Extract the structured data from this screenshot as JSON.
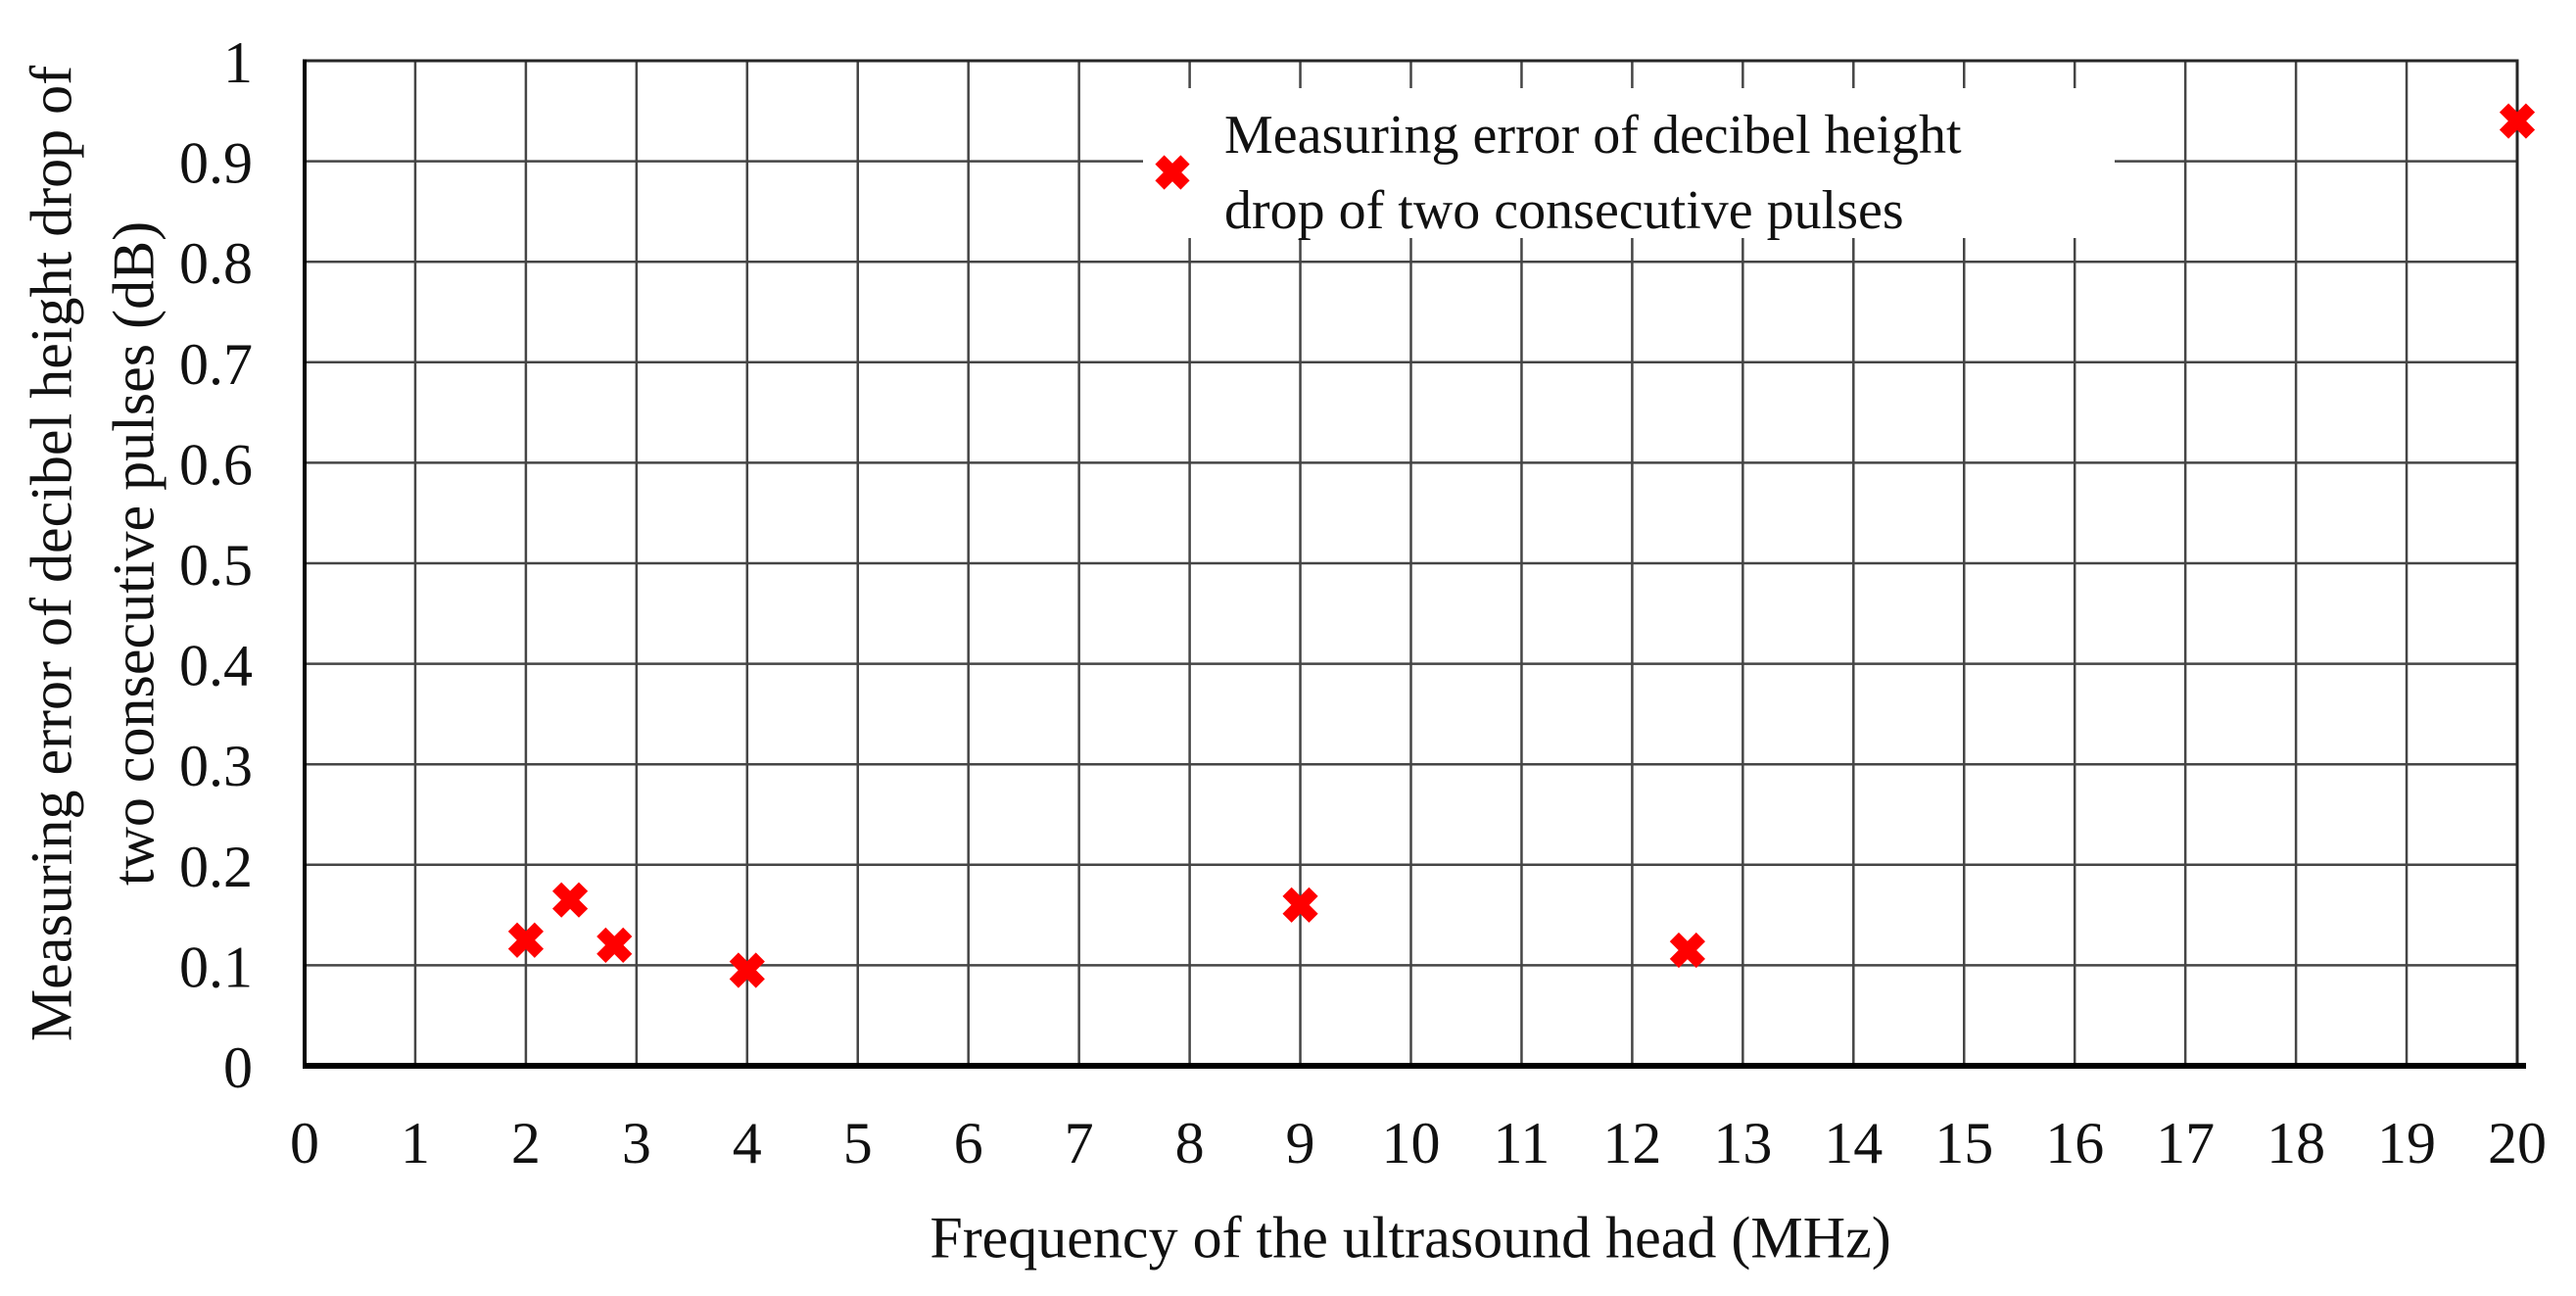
{
  "chart_data": {
    "type": "scatter",
    "title": "",
    "xlabel": "Frequency of the ultrasound head (MHz)",
    "ylabel": "Measuring error of decibel height drop of two consecutive pulses (dB)",
    "ylabel_line1": "Measuring error of decibel height drop of",
    "ylabel_line2": "two consecutive pulses (dB)",
    "xlim": [
      0,
      20
    ],
    "ylim": [
      0,
      1
    ],
    "x_ticks": [
      {
        "value": 0,
        "label": "0"
      },
      {
        "value": 1,
        "label": "1"
      },
      {
        "value": 2,
        "label": "2"
      },
      {
        "value": 3,
        "label": "3"
      },
      {
        "value": 4,
        "label": "4"
      },
      {
        "value": 5,
        "label": "5"
      },
      {
        "value": 6,
        "label": "6"
      },
      {
        "value": 7,
        "label": "7"
      },
      {
        "value": 8,
        "label": "8"
      },
      {
        "value": 9,
        "label": "9"
      },
      {
        "value": 10,
        "label": "10"
      },
      {
        "value": 11,
        "label": "11"
      },
      {
        "value": 12,
        "label": "12"
      },
      {
        "value": 13,
        "label": "13"
      },
      {
        "value": 14,
        "label": "14"
      },
      {
        "value": 15,
        "label": "15"
      },
      {
        "value": 16,
        "label": "16"
      },
      {
        "value": 17,
        "label": "17"
      },
      {
        "value": 18,
        "label": "18"
      },
      {
        "value": 19,
        "label": "19"
      },
      {
        "value": 20,
        "label": "20"
      }
    ],
    "y_ticks": [
      {
        "value": 0,
        "label": "0"
      },
      {
        "value": 0.1,
        "label": "0.1"
      },
      {
        "value": 0.2,
        "label": "0.2"
      },
      {
        "value": 0.3,
        "label": "0.3"
      },
      {
        "value": 0.4,
        "label": "0.4"
      },
      {
        "value": 0.5,
        "label": "0.5"
      },
      {
        "value": 0.6,
        "label": "0.6"
      },
      {
        "value": 0.7,
        "label": "0.7"
      },
      {
        "value": 0.8,
        "label": "0.8"
      },
      {
        "value": 0.9,
        "label": "0.9"
      },
      {
        "value": 1,
        "label": "1"
      }
    ],
    "grid": true,
    "legend": {
      "position": "inside-top-center",
      "marker": "x-cross",
      "line1": "Measuring error of decibel height",
      "line2": "drop of two consecutive pulses",
      "label": "Measuring error of decibel height drop of two consecutive pulses"
    },
    "series": [
      {
        "name": "Measuring error of decibel height drop of two consecutive pulses",
        "marker": "x-cross",
        "color": "#ff0000",
        "points": [
          {
            "x": 2,
            "y": 0.125
          },
          {
            "x": 2.4,
            "y": 0.165
          },
          {
            "x": 2.8,
            "y": 0.12
          },
          {
            "x": 4,
            "y": 0.095
          },
          {
            "x": 9,
            "y": 0.16
          },
          {
            "x": 12.5,
            "y": 0.115
          },
          {
            "x": 20,
            "y": 0.94
          }
        ]
      }
    ],
    "colors": {
      "marker": "#ff0000",
      "gridline": "#454545",
      "border": "#262626",
      "axis": "#000000",
      "text": "#111111",
      "background": "#ffffff"
    }
  }
}
